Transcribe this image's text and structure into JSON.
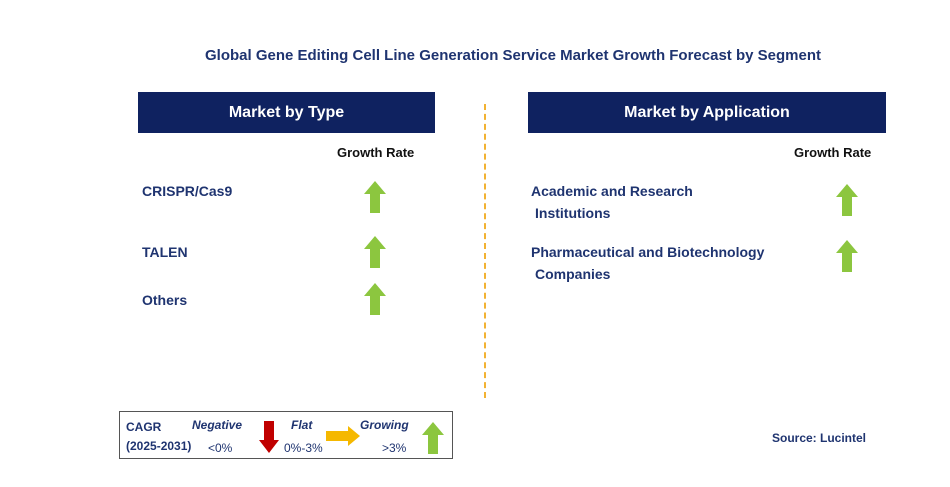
{
  "title": "Global Gene Editing Cell Line Generation Service Market Growth Forecast by Segment",
  "left_panel": {
    "header": "Market by Type",
    "growth_label": "Growth Rate",
    "items": [
      {
        "label": "CRISPR/Cas9",
        "trend": "growing"
      },
      {
        "label": "TALEN",
        "trend": "growing"
      },
      {
        "label": "Others",
        "trend": "growing"
      }
    ]
  },
  "right_panel": {
    "header": "Market by Application",
    "growth_label": "Growth Rate",
    "items": [
      {
        "line1": "Academic and Research",
        "line2": "Institutions",
        "trend": "growing"
      },
      {
        "line1": "Pharmaceutical and Biotechnology",
        "line2": "Companies",
        "trend": "growing"
      }
    ]
  },
  "legend": {
    "cagr": "CAGR",
    "period": "(2025-2031)",
    "negative": {
      "label": "Negative",
      "range": "<0%",
      "icon": "red-down-arrow-icon"
    },
    "flat": {
      "label": "Flat",
      "range": "0%-3%",
      "icon": "orange-right-arrow-icon"
    },
    "growing": {
      "label": "Growing",
      "range": ">3%",
      "icon": "green-up-arrow-icon"
    }
  },
  "source": "Source: Lucintel",
  "colors": {
    "header_bg": "#0f2260",
    "growing": "#8cc63f",
    "negative": "#c00000",
    "flat": "#f5b800",
    "divider": "#f2b233"
  }
}
